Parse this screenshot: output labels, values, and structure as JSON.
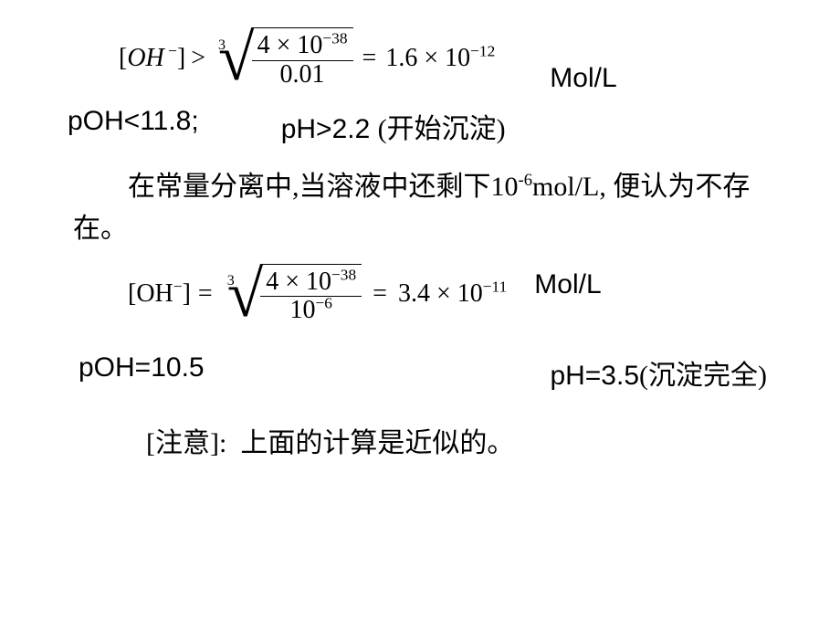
{
  "eq1": {
    "lhs_open": "[",
    "lhs_species_it": "OH",
    "lhs_sup": " −",
    "lhs_close": "]",
    "op": ">",
    "root_index": "3",
    "num_a": "4",
    "num_times": "×",
    "num_base": "10",
    "num_exp": "−38",
    "den": "0.01",
    "eq_sign": "=",
    "rhs_a": "1.6",
    "rhs_times": "×",
    "rhs_base": "10",
    "rhs_exp": "−12",
    "unit": "Mol/L"
  },
  "row1": {
    "poh": "pOH<11.8;",
    "ph_prefix": "pH>2.2 ",
    "ph_cn": "(开始沉淀)"
  },
  "body": {
    "indent": "　　",
    "t1": "在常量分离中,当溶液中还剩下10",
    "exp": "-6",
    "t2": "mol/L, 便认为不存在。"
  },
  "eq2": {
    "lhs_open": "[",
    "lhs_species": "OH",
    "lhs_sup": "−",
    "lhs_close": "]",
    "op": "=",
    "root_index": "3",
    "num_a": "4",
    "num_times": "×",
    "num_base": "10",
    "num_exp": "−38",
    "den_base": "10",
    "den_exp": "−6",
    "eq_sign": "=",
    "rhs_a": "3.4",
    "rhs_times": "×",
    "rhs_base": "10",
    "rhs_exp": "−11",
    "unit": "Mol/L"
  },
  "row2": {
    "poh": "pOH=10.5",
    "ph_prefix": "pH=3.5",
    "ph_cn": "(沉淀完全)"
  },
  "note": {
    "bracket_open": "[",
    "label": "注意",
    "bracket_close": "]:",
    "text": "上面的计算是近似的。"
  }
}
